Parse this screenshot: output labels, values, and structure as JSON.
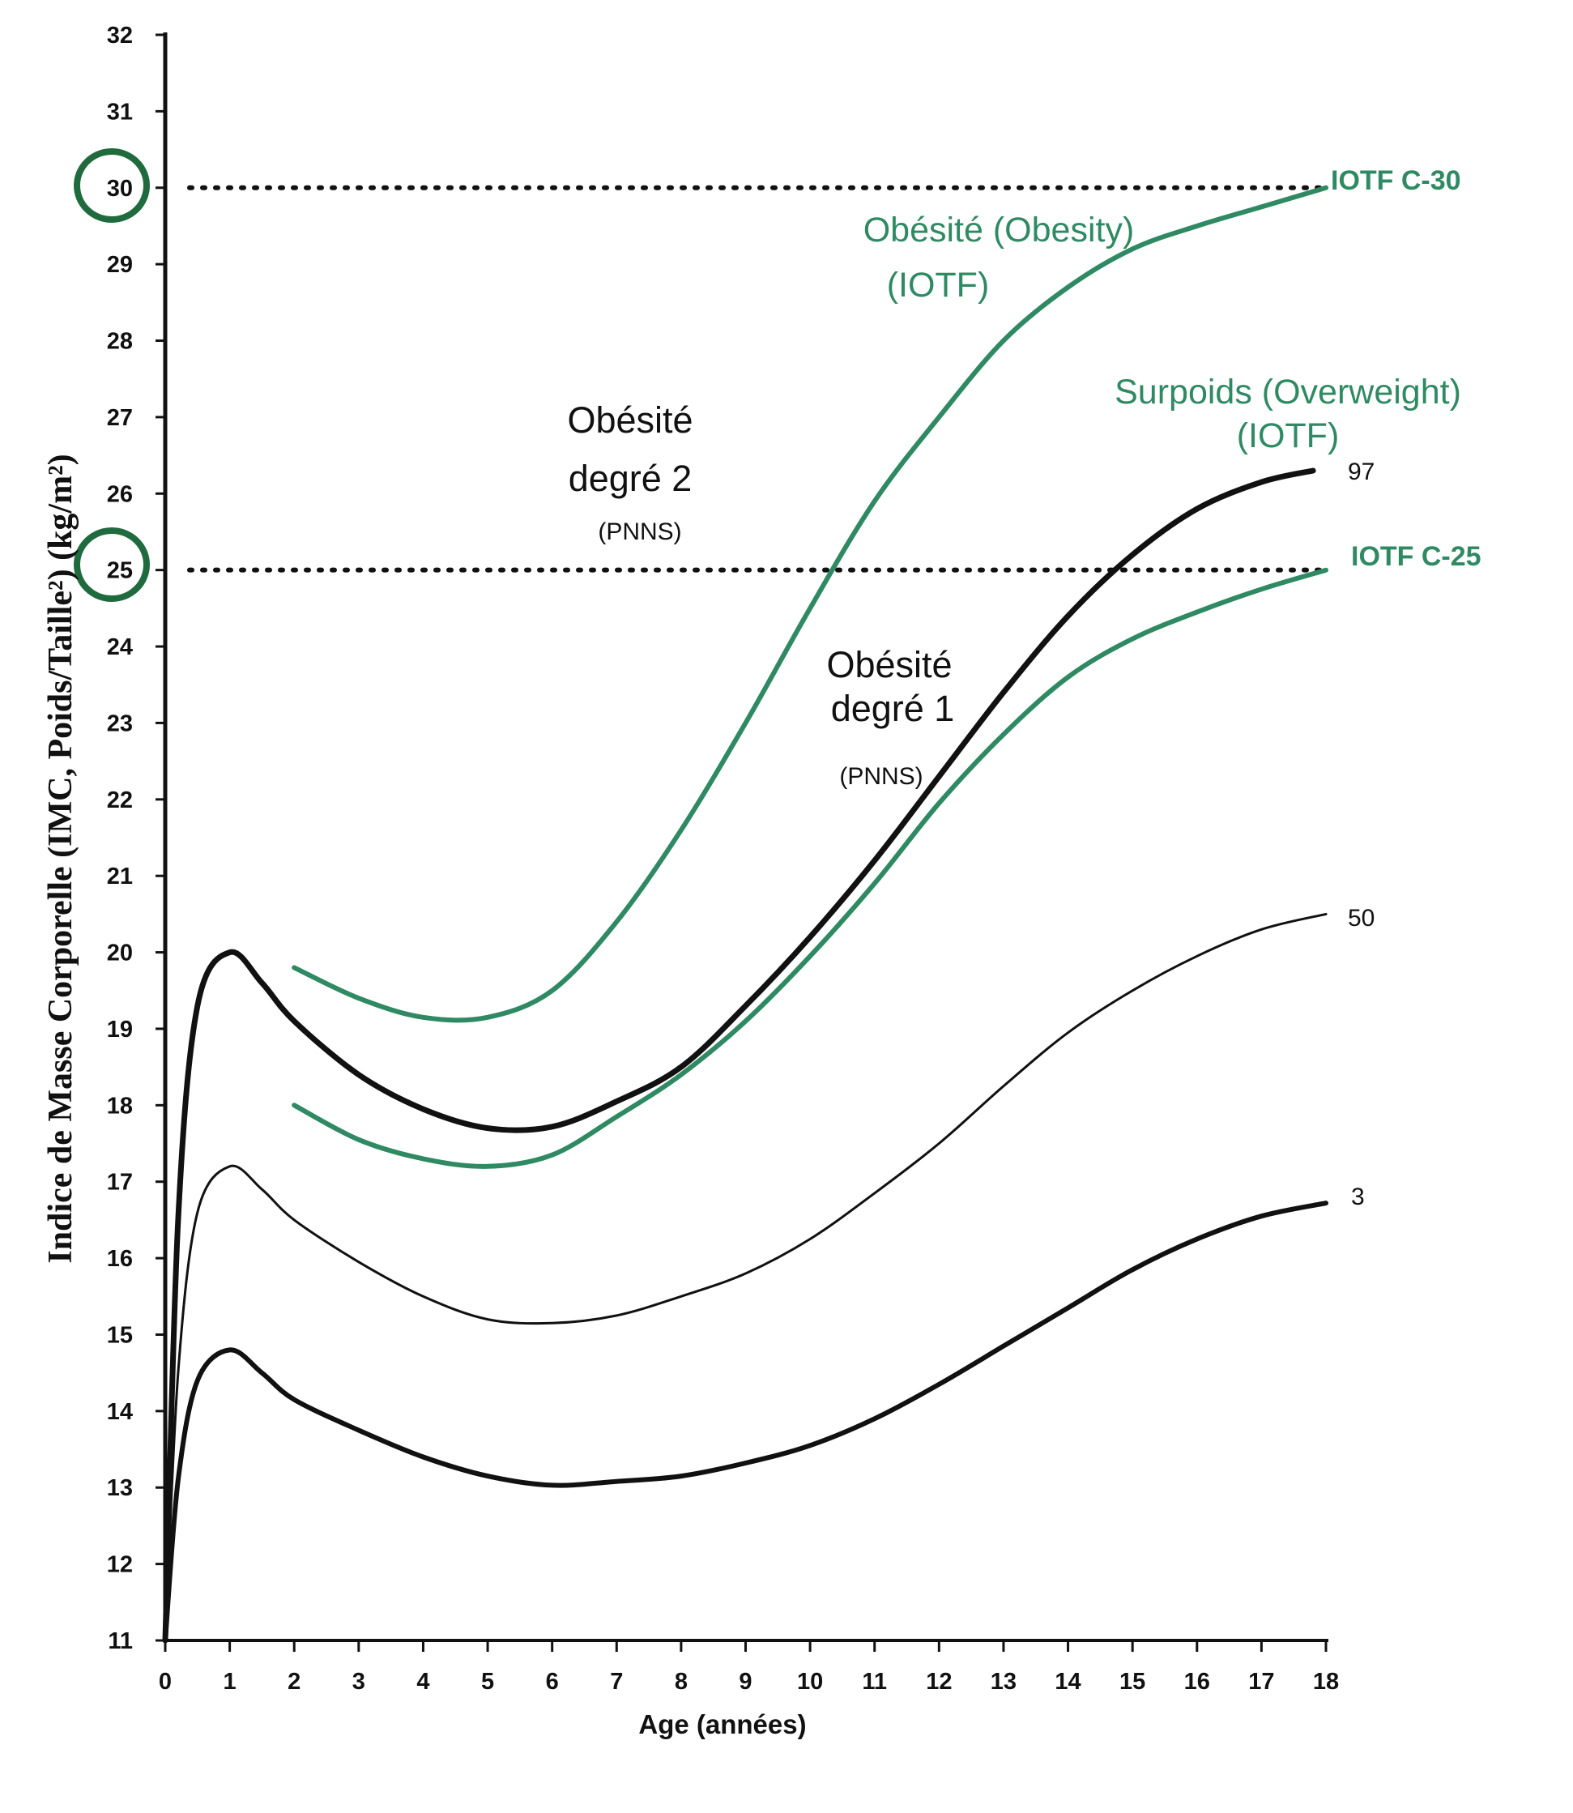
{
  "chart_data": {
    "type": "line",
    "xlabel": "Age (années)",
    "ylabel": "Indice de Masse Corporelle (IMC, Poids/Taille²) (kg/m²)",
    "xlim": [
      0,
      18
    ],
    "ylim": [
      11,
      32
    ],
    "x_ticks": [
      "0",
      "1",
      "2",
      "3",
      "4",
      "5",
      "6",
      "7",
      "8",
      "9",
      "10",
      "11",
      "12",
      "13",
      "14",
      "15",
      "16",
      "17",
      "18"
    ],
    "y_ticks": [
      "11",
      "12",
      "13",
      "14",
      "15",
      "16",
      "17",
      "18",
      "19",
      "20",
      "21",
      "22",
      "23",
      "24",
      "25",
      "26",
      "27",
      "28",
      "29",
      "30",
      "31",
      "32"
    ],
    "highlighted_y_ticks": [
      25,
      30
    ],
    "colors": {
      "black": "#111111",
      "green": "#2f8a63"
    },
    "reference_lines": [
      {
        "name": "iotf-c30",
        "y": 30,
        "label": "IOTF C-30"
      },
      {
        "name": "iotf-c25",
        "y": 25,
        "label": "IOTF C-25"
      }
    ],
    "series": [
      {
        "name": "percentile-97",
        "label": "97",
        "color": "black",
        "weight": "bold",
        "points": [
          [
            0,
            11
          ],
          [
            0.2,
            16.5
          ],
          [
            0.5,
            19.3
          ],
          [
            1,
            20
          ],
          [
            1.5,
            19.6
          ],
          [
            2,
            19.1
          ],
          [
            3,
            18.4
          ],
          [
            4,
            17.95
          ],
          [
            5,
            17.7
          ],
          [
            6,
            17.72
          ],
          [
            7,
            18.05
          ],
          [
            8,
            18.5
          ],
          [
            9,
            19.3
          ],
          [
            10,
            20.2
          ],
          [
            11,
            21.2
          ],
          [
            12,
            22.3
          ],
          [
            13,
            23.4
          ],
          [
            14,
            24.4
          ],
          [
            15,
            25.2
          ],
          [
            16,
            25.8
          ],
          [
            17,
            26.15
          ],
          [
            17.8,
            26.3
          ]
        ]
      },
      {
        "name": "percentile-50",
        "label": "50",
        "color": "black",
        "weight": "thin",
        "points": [
          [
            0,
            11
          ],
          [
            0.2,
            14.5
          ],
          [
            0.5,
            16.6
          ],
          [
            1,
            17.2
          ],
          [
            1.5,
            16.9
          ],
          [
            2,
            16.5
          ],
          [
            3,
            15.95
          ],
          [
            4,
            15.5
          ],
          [
            5,
            15.2
          ],
          [
            6,
            15.15
          ],
          [
            7,
            15.25
          ],
          [
            8,
            15.5
          ],
          [
            9,
            15.8
          ],
          [
            10,
            16.25
          ],
          [
            11,
            16.85
          ],
          [
            12,
            17.5
          ],
          [
            13,
            18.25
          ],
          [
            14,
            18.95
          ],
          [
            15,
            19.5
          ],
          [
            16,
            19.95
          ],
          [
            17,
            20.3
          ],
          [
            18,
            20.5
          ]
        ]
      },
      {
        "name": "percentile-3",
        "label": "3",
        "color": "black",
        "weight": "bold",
        "points": [
          [
            0,
            11
          ],
          [
            0.2,
            13.1
          ],
          [
            0.5,
            14.4
          ],
          [
            1,
            14.8
          ],
          [
            1.5,
            14.5
          ],
          [
            2,
            14.15
          ],
          [
            3,
            13.75
          ],
          [
            4,
            13.4
          ],
          [
            5,
            13.15
          ],
          [
            6,
            13.03
          ],
          [
            7,
            13.08
          ],
          [
            8,
            13.15
          ],
          [
            9,
            13.32
          ],
          [
            10,
            13.55
          ],
          [
            11,
            13.9
          ],
          [
            12,
            14.35
          ],
          [
            13,
            14.85
          ],
          [
            14,
            15.35
          ],
          [
            15,
            15.85
          ],
          [
            16,
            16.25
          ],
          [
            17,
            16.55
          ],
          [
            18,
            16.72
          ]
        ]
      },
      {
        "name": "iotf-obesity",
        "label": "Obésité (Obesity) (IOTF)",
        "color": "green",
        "weight": "medium",
        "points": [
          [
            2,
            19.8
          ],
          [
            3,
            19.4
          ],
          [
            4,
            19.15
          ],
          [
            5,
            19.15
          ],
          [
            6,
            19.5
          ],
          [
            7,
            20.4
          ],
          [
            8,
            21.6
          ],
          [
            9,
            23
          ],
          [
            10,
            24.5
          ],
          [
            11,
            25.9
          ],
          [
            12,
            27
          ],
          [
            13,
            28
          ],
          [
            14,
            28.7
          ],
          [
            15,
            29.2
          ],
          [
            16,
            29.5
          ],
          [
            17,
            29.75
          ],
          [
            18,
            30
          ]
        ]
      },
      {
        "name": "iotf-overweight",
        "label": "Surpoids (Overweight) (IOTF)",
        "color": "green",
        "weight": "medium",
        "points": [
          [
            2,
            18
          ],
          [
            3,
            17.55
          ],
          [
            4,
            17.3
          ],
          [
            5,
            17.2
          ],
          [
            6,
            17.35
          ],
          [
            7,
            17.85
          ],
          [
            8,
            18.4
          ],
          [
            9,
            19.1
          ],
          [
            10,
            19.95
          ],
          [
            11,
            20.9
          ],
          [
            12,
            21.95
          ],
          [
            13,
            22.85
          ],
          [
            14,
            23.6
          ],
          [
            15,
            24.1
          ],
          [
            16,
            24.45
          ],
          [
            17,
            24.75
          ],
          [
            18,
            25
          ]
        ]
      }
    ],
    "annotations": {
      "obese2_line1": "Obésité",
      "obese2_line2": "degré 2",
      "obese2_line3": "(PNNS)",
      "obese1_line1": "Obésité",
      "obese1_line2": "degré 1",
      "obese1_line3": "(PNNS)",
      "obesity_line1": "Obésité (Obesity)",
      "obesity_line2": "(IOTF)",
      "overweight_line1": "Surpoids (Overweight)",
      "overweight_line2": "(IOTF)",
      "label_97": "97",
      "label_50": "50",
      "label_3": "3",
      "label_c30": "IOTF C-30",
      "label_c25": "IOTF C-25"
    }
  }
}
